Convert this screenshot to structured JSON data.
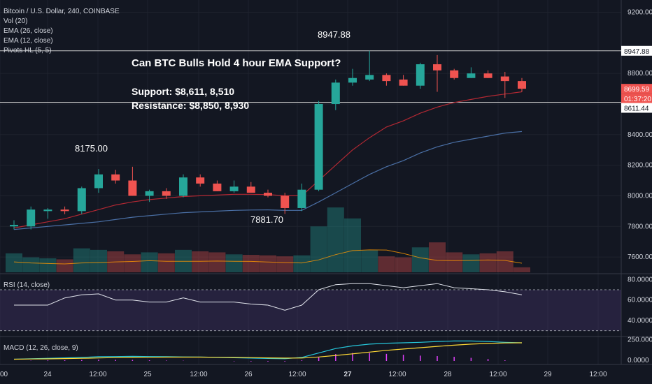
{
  "header": {
    "symbol": "Bitcoin / U.S. Dollar, 240, COINBASE",
    "indicators": [
      "Vol (20)",
      "EMA (26, close)",
      "EMA (12, close)",
      "Pivots HL (5, 5)"
    ]
  },
  "annotation": {
    "headline": "Can BTC Bulls Hold 4 hour EMA Support?",
    "support": "Support: $8,611, 8,510",
    "resistance": "Resistance: $8,850, 8,930"
  },
  "pivot_labels": {
    "high1": "8175.00",
    "low1": "7881.70",
    "high2": "8947.88"
  },
  "price_badges": {
    "high": "8947.88",
    "last": "8699.59",
    "countdown": "01:37:20",
    "level": "8611.44"
  },
  "rsi_label": "RSI (14, close)",
  "macd_label": "MACD (12, 26, close, 9)",
  "colors": {
    "bg": "#131722",
    "up": "#26a69a",
    "down": "#ef5350",
    "ema12": "#b22833",
    "ema26": "#2962ff",
    "rsi_band": "#7e57c2",
    "macd": "#26c6da",
    "signal": "#fdd835",
    "text": "#d1d4dc"
  },
  "chart_data": {
    "type": "candlestick",
    "price_axis_ticks": [
      "9200.00",
      "8800.00",
      "8600.00",
      "8400.00",
      "8200.00",
      "8000.00",
      "7800.00",
      "7600.00"
    ],
    "rsi_axis_ticks": [
      "80.0000",
      "60.0000",
      "40.0000"
    ],
    "macd_axis_ticks": [
      "250.0000",
      "0.0000"
    ],
    "x_ticks": [
      "00",
      "24",
      "12:00",
      "25",
      "12:00",
      "26",
      "12:00",
      "27",
      "12:00",
      "28",
      "12:00",
      "29",
      "12:00"
    ],
    "ylim": [
      7500,
      9280
    ],
    "hlines": [
      8947.88,
      8611.44
    ],
    "candles": [
      {
        "o": 7800,
        "h": 7840,
        "l": 7780,
        "c": 7810
      },
      {
        "o": 7800,
        "h": 7930,
        "l": 7780,
        "c": 7910
      },
      {
        "o": 7900,
        "h": 7920,
        "l": 7850,
        "c": 7910
      },
      {
        "o": 7910,
        "h": 7930,
        "l": 7880,
        "c": 7900
      },
      {
        "o": 7900,
        "h": 8060,
        "l": 7880,
        "c": 8050
      },
      {
        "o": 8050,
        "h": 8175,
        "l": 8020,
        "c": 8140
      },
      {
        "o": 8140,
        "h": 8170,
        "l": 8080,
        "c": 8100
      },
      {
        "o": 8100,
        "h": 8190,
        "l": 8000,
        "c": 8000
      },
      {
        "o": 8000,
        "h": 8040,
        "l": 7960,
        "c": 8030
      },
      {
        "o": 8030,
        "h": 8050,
        "l": 7980,
        "c": 8000
      },
      {
        "o": 8000,
        "h": 8140,
        "l": 7990,
        "c": 8120
      },
      {
        "o": 8120,
        "h": 8140,
        "l": 8060,
        "c": 8080
      },
      {
        "o": 8080,
        "h": 8100,
        "l": 8030,
        "c": 8030
      },
      {
        "o": 8030,
        "h": 8100,
        "l": 8020,
        "c": 8060
      },
      {
        "o": 8060,
        "h": 8090,
        "l": 8020,
        "c": 8020
      },
      {
        "o": 8020,
        "h": 8040,
        "l": 7990,
        "c": 8000
      },
      {
        "o": 8000,
        "h": 8020,
        "l": 7882,
        "c": 7920
      },
      {
        "o": 7920,
        "h": 8080,
        "l": 7900,
        "c": 8040
      },
      {
        "o": 8040,
        "h": 8620,
        "l": 8030,
        "c": 8600
      },
      {
        "o": 8600,
        "h": 8760,
        "l": 8560,
        "c": 8740
      },
      {
        "o": 8740,
        "h": 8830,
        "l": 8720,
        "c": 8770
      },
      {
        "o": 8760,
        "h": 8948,
        "l": 8750,
        "c": 8790
      },
      {
        "o": 8790,
        "h": 8800,
        "l": 8720,
        "c": 8750
      },
      {
        "o": 8760,
        "h": 8790,
        "l": 8720,
        "c": 8720
      },
      {
        "o": 8720,
        "h": 8870,
        "l": 8700,
        "c": 8860
      },
      {
        "o": 8860,
        "h": 8920,
        "l": 8680,
        "c": 8820
      },
      {
        "o": 8820,
        "h": 8830,
        "l": 8760,
        "c": 8770
      },
      {
        "o": 8770,
        "h": 8840,
        "l": 8770,
        "c": 8800
      },
      {
        "o": 8800,
        "h": 8820,
        "l": 8770,
        "c": 8770
      },
      {
        "o": 8780,
        "h": 8810,
        "l": 8640,
        "c": 8750
      },
      {
        "o": 8750,
        "h": 8770,
        "l": 8680,
        "c": 8700
      }
    ],
    "ema12": [
      7790,
      7810,
      7830,
      7850,
      7880,
      7910,
      7940,
      7960,
      7975,
      7985,
      7995,
      8000,
      8005,
      8010,
      8010,
      8008,
      8000,
      8000,
      8100,
      8200,
      8300,
      8380,
      8450,
      8490,
      8540,
      8580,
      8610,
      8630,
      8650,
      8665,
      8680
    ],
    "ema26": [
      7780,
      7790,
      7800,
      7810,
      7820,
      7830,
      7845,
      7860,
      7870,
      7880,
      7890,
      7895,
      7900,
      7905,
      7907,
      7908,
      7905,
      7905,
      7960,
      8020,
      8080,
      8140,
      8190,
      8230,
      8280,
      8320,
      8350,
      8370,
      8390,
      8410,
      8420
    ],
    "volume": [
      38,
      30,
      28,
      26,
      48,
      45,
      42,
      36,
      40,
      38,
      45,
      42,
      40,
      36,
      35,
      34,
      32,
      34,
      92,
      130,
      108,
      44,
      32,
      30,
      50,
      60,
      40,
      36,
      38,
      42,
      10
    ],
    "rsi": [
      55,
      55,
      55,
      62,
      65,
      66,
      60,
      60,
      58,
      58,
      62,
      58,
      58,
      58,
      56,
      55,
      50,
      55,
      70,
      75,
      76,
      76,
      74,
      72,
      74,
      76,
      72,
      71,
      70,
      68,
      65
    ],
    "macd": [
      20,
      25,
      30,
      35,
      40,
      48,
      50,
      52,
      50,
      48,
      46,
      44,
      40,
      36,
      32,
      28,
      25,
      40,
      90,
      140,
      170,
      190,
      200,
      205,
      210,
      220,
      225,
      225,
      220,
      210,
      205
    ],
    "macd_signal": [
      20,
      22,
      24,
      27,
      30,
      34,
      38,
      40,
      42,
      43,
      43,
      43,
      42,
      40,
      38,
      35,
      32,
      33,
      45,
      62,
      80,
      100,
      120,
      135,
      150,
      165,
      178,
      190,
      198,
      203,
      205
    ]
  }
}
